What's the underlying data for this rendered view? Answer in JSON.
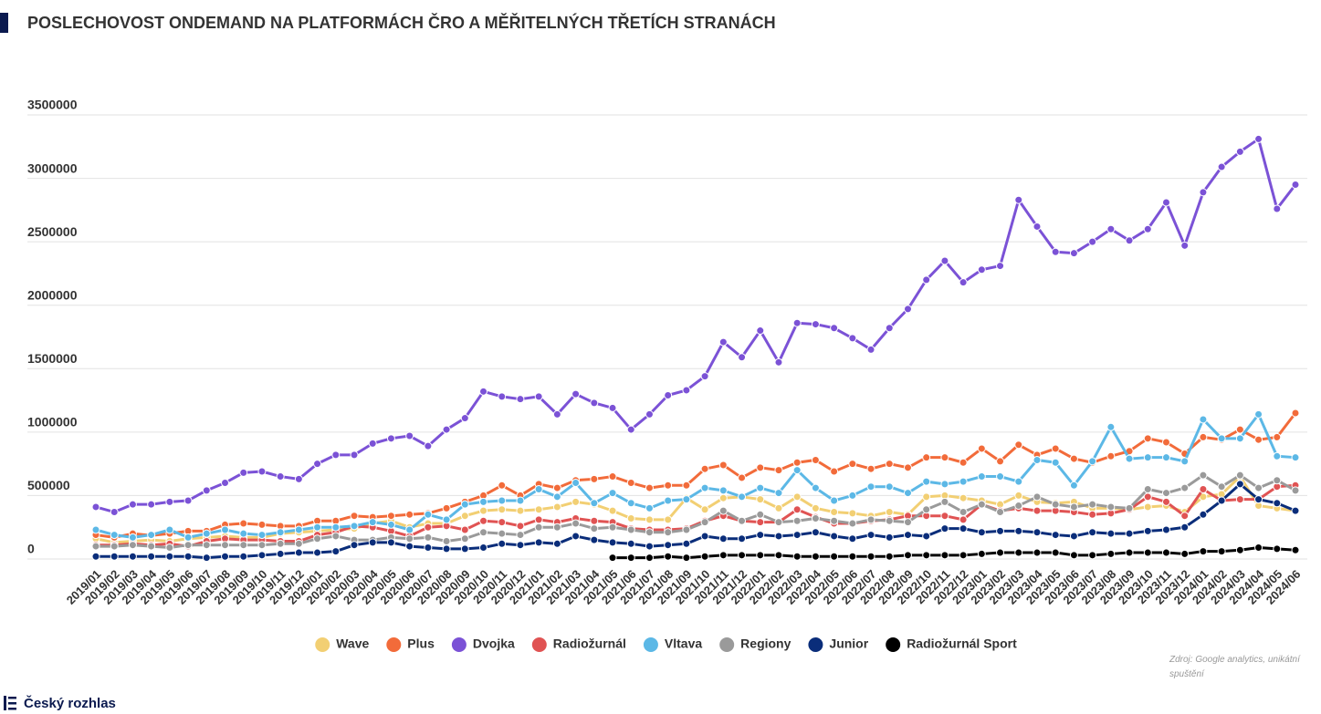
{
  "chart_data": {
    "type": "line",
    "title": "POSLECHOVOST ONDEMAND NA PLATFORMÁCH ČRO A MĚŘITELNÝCH TŘETÍCH STRANÁCH",
    "source": "Zdroj: Google analytics, unikátní spuštění",
    "logo": "Český rozhlas",
    "categories": [
      "2019/01",
      "2019/02",
      "2019/03",
      "2019/04",
      "2019/05",
      "2019/06",
      "2019/07",
      "2019/08",
      "2019/09",
      "2019/10",
      "2019/11",
      "2019/12",
      "2020/01",
      "2020/02",
      "2020/03",
      "2020/04",
      "2020/05",
      "2020/06",
      "2020/07",
      "2020/08",
      "2020/09",
      "2020/10",
      "2020/11",
      "2020/12",
      "2021/01",
      "2021/02",
      "2021/03",
      "2021/04",
      "2021/05",
      "2021/06",
      "2021/07",
      "2021/08",
      "2021/09",
      "2021/10",
      "2021/11",
      "2021/12",
      "2022/01",
      "2022/02",
      "2022/03",
      "2022/04",
      "2022/05",
      "2022/06",
      "2022/07",
      "2022/08",
      "2022/09",
      "2022/10",
      "2022/11",
      "2022/12",
      "2023/01",
      "2023/02",
      "2023/03",
      "2023/04",
      "2023/05",
      "2023/06",
      "2023/07",
      "2023/08",
      "2023/09",
      "2023/10",
      "2023/11",
      "2023/12",
      "2024/01",
      "2024/02",
      "2024/03",
      "2024/04",
      "2024/05",
      "2024/06"
    ],
    "ylim": [
      0,
      3500000
    ],
    "yticks": [
      0,
      500000,
      1000000,
      1500000,
      2000000,
      2500000,
      3000000,
      3500000
    ],
    "grid": true,
    "legend": "bottom",
    "series": [
      {
        "name": "Wave",
        "color": "#f2cf73",
        "values": [
          160000,
          130000,
          140000,
          150000,
          140000,
          160000,
          170000,
          180000,
          170000,
          170000,
          200000,
          210000,
          220000,
          230000,
          240000,
          280000,
          300000,
          250000,
          280000,
          280000,
          340000,
          380000,
          390000,
          380000,
          390000,
          410000,
          450000,
          430000,
          380000,
          320000,
          310000,
          310000,
          480000,
          390000,
          480000,
          490000,
          470000,
          400000,
          490000,
          400000,
          370000,
          360000,
          340000,
          370000,
          350000,
          490000,
          500000,
          480000,
          460000,
          430000,
          500000,
          450000,
          440000,
          450000,
          400000,
          400000,
          390000,
          410000,
          420000,
          370000,
          490000,
          510000,
          650000,
          420000,
          400000,
          380000
        ]
      },
      {
        "name": "Plus",
        "color": "#f26b3a",
        "values": [
          190000,
          170000,
          200000,
          185000,
          200000,
          220000,
          220000,
          270000,
          280000,
          270000,
          260000,
          260000,
          300000,
          300000,
          340000,
          330000,
          340000,
          350000,
          360000,
          400000,
          450000,
          500000,
          580000,
          500000,
          590000,
          560000,
          620000,
          630000,
          650000,
          600000,
          560000,
          580000,
          580000,
          710000,
          740000,
          640000,
          720000,
          700000,
          760000,
          780000,
          690000,
          750000,
          710000,
          750000,
          720000,
          800000,
          800000,
          760000,
          870000,
          770000,
          900000,
          820000,
          870000,
          790000,
          760000,
          810000,
          850000,
          950000,
          920000,
          830000,
          960000,
          940000,
          1020000,
          940000,
          960000,
          1150000
        ]
      },
      {
        "name": "Dvojka",
        "color": "#7b52d6",
        "values": [
          410000,
          370000,
          430000,
          430000,
          450000,
          460000,
          540000,
          600000,
          680000,
          690000,
          650000,
          630000,
          750000,
          820000,
          820000,
          910000,
          950000,
          970000,
          890000,
          1020000,
          1110000,
          1320000,
          1280000,
          1260000,
          1280000,
          1140000,
          1300000,
          1230000,
          1190000,
          1020000,
          1140000,
          1290000,
          1330000,
          1440000,
          1710000,
          1590000,
          1800000,
          1550000,
          1860000,
          1850000,
          1820000,
          1740000,
          1650000,
          1820000,
          1970000,
          2200000,
          2350000,
          2180000,
          2280000,
          2310000,
          2830000,
          2620000,
          2420000,
          2410000,
          2500000,
          2600000,
          2510000,
          2600000,
          2810000,
          2470000,
          2890000,
          3090000,
          3210000,
          3310000,
          2760000,
          2950000
        ]
      },
      {
        "name": "Radiožurnál",
        "color": "#e05353",
        "values": [
          110000,
          110000,
          120000,
          110000,
          120000,
          100000,
          140000,
          160000,
          150000,
          150000,
          140000,
          140000,
          190000,
          210000,
          260000,
          250000,
          220000,
          180000,
          250000,
          260000,
          230000,
          300000,
          290000,
          260000,
          310000,
          290000,
          320000,
          300000,
          290000,
          240000,
          230000,
          230000,
          240000,
          300000,
          340000,
          300000,
          290000,
          290000,
          390000,
          330000,
          280000,
          280000,
          300000,
          310000,
          340000,
          340000,
          340000,
          310000,
          430000,
          380000,
          400000,
          380000,
          380000,
          370000,
          350000,
          360000,
          390000,
          490000,
          450000,
          340000,
          550000,
          460000,
          470000,
          470000,
          570000,
          580000
        ]
      },
      {
        "name": "Vltava",
        "color": "#5cb8e6",
        "values": [
          230000,
          190000,
          170000,
          190000,
          230000,
          170000,
          200000,
          230000,
          200000,
          190000,
          210000,
          230000,
          250000,
          250000,
          260000,
          290000,
          270000,
          230000,
          350000,
          310000,
          430000,
          450000,
          460000,
          460000,
          550000,
          490000,
          600000,
          440000,
          520000,
          440000,
          400000,
          460000,
          470000,
          560000,
          540000,
          490000,
          560000,
          520000,
          700000,
          560000,
          460000,
          500000,
          570000,
          570000,
          520000,
          610000,
          590000,
          610000,
          650000,
          650000,
          610000,
          780000,
          760000,
          580000,
          770000,
          1040000,
          790000,
          800000,
          800000,
          770000,
          1100000,
          950000,
          950000,
          1140000,
          810000,
          800000
        ]
      },
      {
        "name": "Regiony",
        "color": "#9a9a9a",
        "values": [
          100000,
          100000,
          110000,
          100000,
          90000,
          110000,
          110000,
          110000,
          110000,
          110000,
          120000,
          120000,
          160000,
          180000,
          150000,
          150000,
          170000,
          160000,
          170000,
          140000,
          160000,
          210000,
          200000,
          190000,
          250000,
          250000,
          280000,
          240000,
          250000,
          230000,
          210000,
          210000,
          230000,
          290000,
          380000,
          300000,
          350000,
          290000,
          300000,
          320000,
          300000,
          280000,
          310000,
          300000,
          290000,
          390000,
          450000,
          370000,
          430000,
          370000,
          420000,
          490000,
          430000,
          410000,
          430000,
          410000,
          400000,
          550000,
          520000,
          560000,
          660000,
          570000,
          660000,
          560000,
          620000,
          540000
        ]
      },
      {
        "name": "Junior",
        "color": "#0a2d7a",
        "values": [
          20000,
          20000,
          20000,
          20000,
          20000,
          20000,
          10000,
          20000,
          20000,
          30000,
          40000,
          50000,
          50000,
          60000,
          110000,
          130000,
          130000,
          100000,
          90000,
          80000,
          80000,
          90000,
          120000,
          110000,
          130000,
          120000,
          180000,
          150000,
          130000,
          120000,
          100000,
          110000,
          120000,
          180000,
          160000,
          160000,
          190000,
          180000,
          190000,
          210000,
          180000,
          160000,
          190000,
          170000,
          190000,
          180000,
          240000,
          240000,
          210000,
          220000,
          220000,
          210000,
          190000,
          180000,
          210000,
          200000,
          200000,
          220000,
          230000,
          250000,
          350000,
          460000,
          590000,
          470000,
          440000,
          380000
        ]
      },
      {
        "name": "Radiožurnál Sport",
        "color": "#000000",
        "values": [
          null,
          null,
          null,
          null,
          null,
          null,
          null,
          null,
          null,
          null,
          null,
          null,
          null,
          null,
          null,
          null,
          null,
          null,
          null,
          null,
          null,
          null,
          null,
          null,
          null,
          null,
          null,
          null,
          10000,
          10000,
          10000,
          20000,
          10000,
          20000,
          30000,
          30000,
          30000,
          30000,
          20000,
          20000,
          20000,
          20000,
          20000,
          20000,
          30000,
          30000,
          30000,
          30000,
          40000,
          50000,
          50000,
          50000,
          50000,
          30000,
          30000,
          40000,
          50000,
          50000,
          50000,
          40000,
          60000,
          60000,
          70000,
          90000,
          80000,
          70000
        ]
      }
    ]
  }
}
